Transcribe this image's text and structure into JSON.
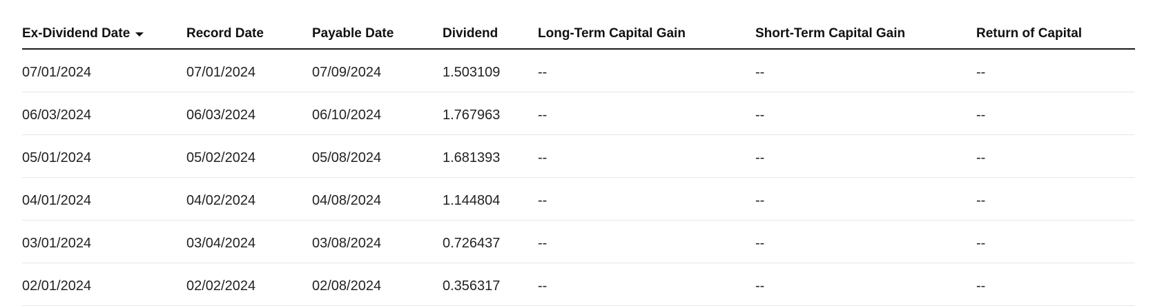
{
  "table": {
    "headers": [
      "Ex-Dividend Date",
      "Record Date",
      "Payable Date",
      "Dividend",
      "Long-Term Capital Gain",
      "Short-Term Capital Gain",
      "Return of Capital"
    ],
    "sort": {
      "column": "Ex-Dividend Date",
      "direction": "descending",
      "icon": "caret-down-icon"
    },
    "rows": [
      [
        "07/01/2024",
        "07/01/2024",
        "07/09/2024",
        "1.503109",
        "--",
        "--",
        "--"
      ],
      [
        "06/03/2024",
        "06/03/2024",
        "06/10/2024",
        "1.767963",
        "--",
        "--",
        "--"
      ],
      [
        "05/01/2024",
        "05/02/2024",
        "05/08/2024",
        "1.681393",
        "--",
        "--",
        "--"
      ],
      [
        "04/01/2024",
        "04/02/2024",
        "04/08/2024",
        "1.144804",
        "--",
        "--",
        "--"
      ],
      [
        "03/01/2024",
        "03/04/2024",
        "03/08/2024",
        "0.726437",
        "--",
        "--",
        "--"
      ],
      [
        "02/01/2024",
        "02/02/2024",
        "02/08/2024",
        "0.356317",
        "--",
        "--",
        "--"
      ]
    ]
  }
}
